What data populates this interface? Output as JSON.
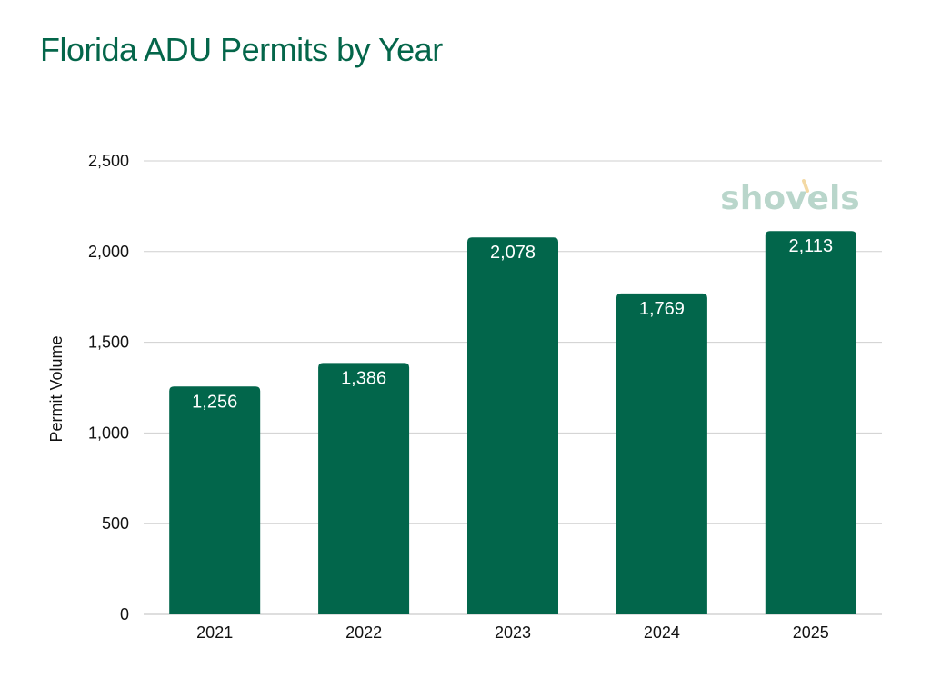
{
  "chart_data": {
    "type": "bar",
    "title": "Florida ADU Permits by Year",
    "xlabel": "",
    "ylabel": "Permit Volume",
    "categories": [
      "2021",
      "2022",
      "2023",
      "2024",
      "2025"
    ],
    "values": [
      1256,
      1386,
      2078,
      1769,
      2113
    ],
    "data_labels": [
      "1,256",
      "1,386",
      "2,078",
      "1,769",
      "2,113"
    ],
    "ylim": [
      0,
      2500
    ],
    "yticks": [
      0,
      500,
      1000,
      1500,
      2000,
      2500
    ],
    "ytick_labels": [
      "0",
      "500",
      "1,000",
      "1,500",
      "2,000",
      "2,500"
    ],
    "grid": true,
    "bar_color": "#02664b",
    "title_color": "#04664a"
  },
  "logo": {
    "text": "shovels",
    "color": "#b9d6cb",
    "accent_color": "#f3d9a4"
  }
}
